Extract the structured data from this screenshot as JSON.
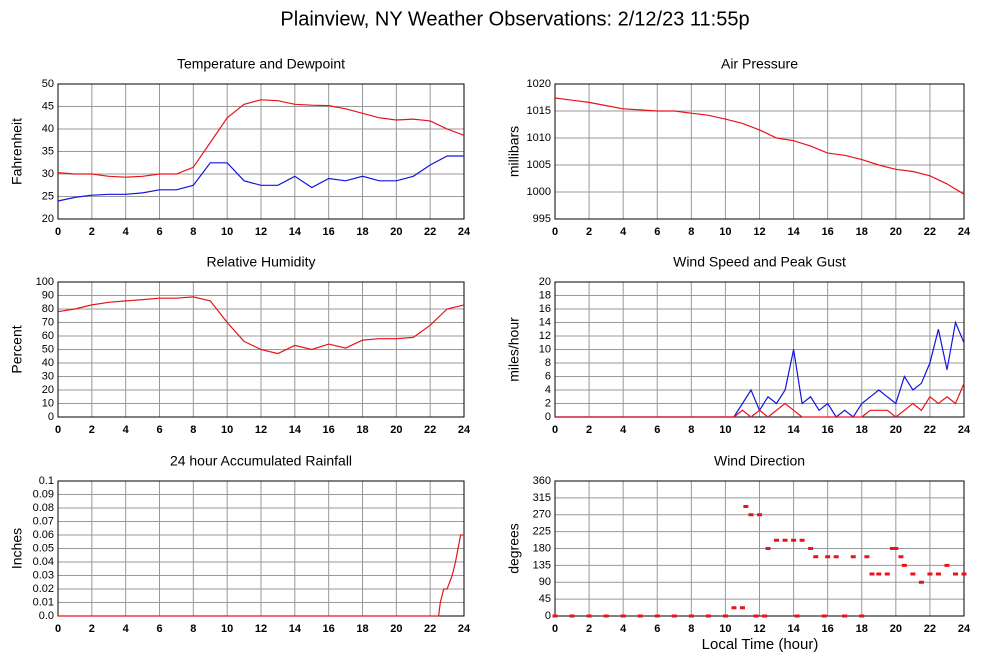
{
  "title": "Plainview, NY Weather Observations: 2/12/23 11:55p",
  "x_label": "Local Time (hour)",
  "chart_data": [
    {
      "type": "line",
      "title": "Temperature and Dewpoint",
      "y_label": "Fahrenheit",
      "x": [
        0,
        1,
        2,
        3,
        4,
        5,
        6,
        7,
        8,
        9,
        10,
        11,
        12,
        13,
        14,
        15,
        16,
        17,
        18,
        19,
        20,
        21,
        22,
        23,
        24
      ],
      "xlim": [
        0,
        24
      ],
      "xticks": [
        0,
        2,
        4,
        6,
        8,
        10,
        12,
        14,
        16,
        18,
        20,
        22,
        24
      ],
      "ylim": [
        20,
        50
      ],
      "yticks": [
        20,
        25,
        30,
        35,
        40,
        45,
        50
      ],
      "grid": true,
      "series": [
        {
          "color": "#e8141a",
          "values": [
            30.3,
            30,
            30,
            29.5,
            29.3,
            29.5,
            30,
            30,
            31.5,
            37,
            42.5,
            45.5,
            46.5,
            46.3,
            45.5,
            45.3,
            45.2,
            44.5,
            43.5,
            42.5,
            42,
            42.2,
            41.8,
            40,
            38.6
          ]
        },
        {
          "color": "#1414e0",
          "values": [
            24,
            24.8,
            25.3,
            25.5,
            25.5,
            25.8,
            26.5,
            26.5,
            27.5,
            32.5,
            32.5,
            28.5,
            27.5,
            27.5,
            29.5,
            27,
            29,
            28.5,
            29.5,
            28.5,
            28.5,
            29.5,
            32,
            34,
            34
          ]
        }
      ]
    },
    {
      "type": "line",
      "title": "Air Pressure",
      "y_label": "millibars",
      "x": [
        0,
        1,
        2,
        3,
        4,
        5,
        6,
        7,
        8,
        9,
        10,
        11,
        12,
        13,
        14,
        15,
        16,
        17,
        18,
        19,
        20,
        21,
        22,
        23,
        24
      ],
      "xlim": [
        0,
        24
      ],
      "xticks": [
        0,
        2,
        4,
        6,
        8,
        10,
        12,
        14,
        16,
        18,
        20,
        22,
        24
      ],
      "ylim": [
        995,
        1020
      ],
      "yticks": [
        995,
        1000,
        1005,
        1010,
        1015,
        1020
      ],
      "grid": true,
      "series": [
        {
          "color": "#e8141a",
          "values": [
            1017.4,
            1017,
            1016.6,
            1016,
            1015.4,
            1015.2,
            1015,
            1015,
            1014.6,
            1014.2,
            1013.5,
            1012.7,
            1011.5,
            1010,
            1009.5,
            1008.5,
            1007.2,
            1006.8,
            1006,
            1005,
            1004.2,
            1003.8,
            1003,
            1001.5,
            999.6
          ]
        }
      ]
    },
    {
      "type": "line",
      "title": "Relative Humidity",
      "y_label": "Percent",
      "x": [
        0,
        1,
        2,
        3,
        4,
        5,
        6,
        7,
        8,
        9,
        10,
        11,
        12,
        13,
        14,
        15,
        16,
        17,
        18,
        19,
        20,
        21,
        22,
        23,
        24
      ],
      "xlim": [
        0,
        24
      ],
      "xticks": [
        0,
        2,
        4,
        6,
        8,
        10,
        12,
        14,
        16,
        18,
        20,
        22,
        24
      ],
      "ylim": [
        0,
        100
      ],
      "yticks": [
        0,
        10,
        20,
        30,
        40,
        50,
        60,
        70,
        80,
        90,
        100
      ],
      "grid": true,
      "series": [
        {
          "color": "#e8141a",
          "values": [
            78,
            80,
            83,
            85,
            86,
            87,
            88,
            88,
            89,
            86,
            70,
            56,
            50,
            47,
            53,
            50,
            54,
            51,
            57,
            58,
            58,
            59,
            68,
            80,
            83
          ]
        }
      ]
    },
    {
      "type": "line",
      "title": "Wind Speed and Peak Gust",
      "y_label": "miles/hour",
      "x": [
        0,
        0.5,
        1,
        1.5,
        2,
        2.5,
        3,
        3.5,
        4,
        4.5,
        5,
        5.5,
        6,
        6.5,
        7,
        7.5,
        8,
        8.5,
        9,
        9.5,
        10,
        10.5,
        11,
        11.5,
        12,
        12.5,
        13,
        13.5,
        14,
        14.5,
        15,
        15.5,
        16,
        16.5,
        17,
        17.5,
        18,
        18.5,
        19,
        19.5,
        20,
        20.5,
        21,
        21.5,
        22,
        22.5,
        23,
        23.5,
        24
      ],
      "xlim": [
        0,
        24
      ],
      "xticks": [
        0,
        2,
        4,
        6,
        8,
        10,
        12,
        14,
        16,
        18,
        20,
        22,
        24
      ],
      "ylim": [
        0,
        20
      ],
      "yticks": [
        0,
        2,
        4,
        6,
        8,
        10,
        12,
        14,
        16,
        18,
        20
      ],
      "grid": true,
      "series": [
        {
          "color": "#1414e0",
          "values": [
            0,
            0,
            0,
            0,
            0,
            0,
            0,
            0,
            0,
            0,
            0,
            0,
            0,
            0,
            0,
            0,
            0,
            0,
            0,
            0,
            0,
            0,
            2,
            4,
            1,
            3,
            2,
            4,
            10,
            2,
            3,
            1,
            2,
            0,
            1,
            0,
            2,
            3,
            4,
            3,
            2,
            6,
            4,
            5,
            8,
            13,
            7,
            14,
            11
          ]
        },
        {
          "color": "#e8141a",
          "values": [
            0,
            0,
            0,
            0,
            0,
            0,
            0,
            0,
            0,
            0,
            0,
            0,
            0,
            0,
            0,
            0,
            0,
            0,
            0,
            0,
            0,
            0,
            1,
            0,
            1,
            0,
            1,
            2,
            1,
            0,
            0,
            0,
            0,
            0,
            0,
            0,
            0,
            1,
            1,
            1,
            0,
            1,
            2,
            1,
            3,
            2,
            3,
            2,
            5
          ]
        }
      ]
    },
    {
      "type": "line",
      "title": "24 hour Accumulated Rainfall",
      "y_label": "Inches",
      "x": [
        0,
        22.5,
        22.6,
        22.8,
        23,
        23.3,
        23.5,
        23.8,
        24
      ],
      "xlim": [
        0,
        24
      ],
      "xticks": [
        0,
        2,
        4,
        6,
        8,
        10,
        12,
        14,
        16,
        18,
        20,
        22,
        24
      ],
      "ylim": [
        0,
        0.1
      ],
      "yticks": [
        {
          "value": 0,
          "label": "0.0"
        },
        0.01,
        0.02,
        0.03,
        0.04,
        0.05,
        0.06,
        0.07,
        0.08,
        0.09,
        0.1
      ],
      "grid": true,
      "series": [
        {
          "color": "#e8141a",
          "values": [
            0,
            0,
            0.01,
            0.02,
            0.02,
            0.03,
            0.04,
            0.06,
            0.06
          ]
        }
      ]
    },
    {
      "type": "scatter",
      "title": "Wind Direction",
      "y_label": "degrees",
      "x": [
        0,
        1,
        2,
        3,
        4,
        5,
        6,
        7,
        8,
        9,
        10,
        10.5,
        11,
        11.2,
        11.5,
        11.8,
        12,
        12.3,
        12.5,
        13,
        13.5,
        14,
        14.2,
        14.5,
        15,
        15.3,
        15.8,
        16,
        16.5,
        17,
        17.5,
        18,
        18.3,
        18.6,
        19,
        19.5,
        19.8,
        20,
        20.3,
        20.5,
        21,
        21.5,
        22,
        22.5,
        23,
        23.5,
        24
      ],
      "xlim": [
        0,
        24
      ],
      "xticks": [
        0,
        2,
        4,
        6,
        8,
        10,
        12,
        14,
        16,
        18,
        20,
        22,
        24
      ],
      "ylim": [
        0,
        360
      ],
      "yticks": [
        0,
        45,
        90,
        135,
        180,
        225,
        270,
        315,
        360
      ],
      "grid": true,
      "series": [
        {
          "color": "#e8141a",
          "values": [
            0,
            0,
            0,
            0,
            0,
            0,
            0,
            0,
            0,
            0,
            0,
            22,
            22,
            292,
            270,
            0,
            270,
            0,
            180,
            202,
            202,
            202,
            0,
            202,
            180,
            158,
            0,
            158,
            158,
            0,
            158,
            0,
            158,
            112,
            112,
            112,
            180,
            180,
            158,
            135,
            112,
            90,
            112,
            112,
            135,
            112,
            112
          ]
        }
      ]
    }
  ]
}
